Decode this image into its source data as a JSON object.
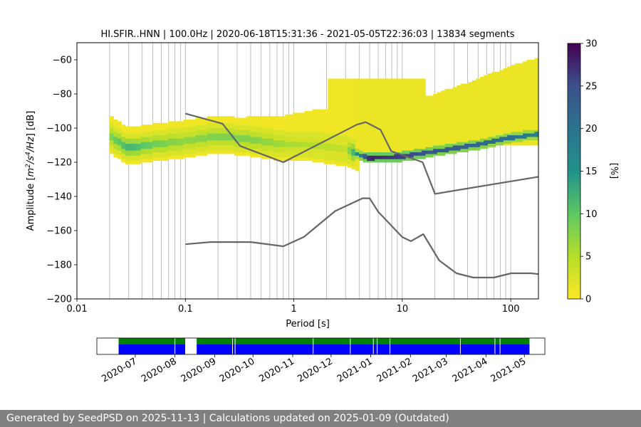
{
  "chart_data": [
    {
      "type": "heatmap",
      "title": "HI.SFIR..HNN | 100.0Hz | 2020-06-18T15:31:36 - 2021-05-05T22:36:03 | 13834 segments",
      "xlabel": "Period [s]",
      "ylabel_pre": "Amplitude [",
      "ylabel_m": "m",
      "ylabel_sup1": "2",
      "ylabel_s": "/s",
      "ylabel_sup2": "4",
      "ylabel_post": "/Hz] [dB]",
      "x_scale": "log",
      "xlim": [
        0.01,
        180
      ],
      "ylim": [
        -200,
        -50
      ],
      "xticks": [
        0.01,
        0.1,
        1,
        10,
        100
      ],
      "xtick_labels": [
        "0.01",
        "0.1",
        "1",
        "10",
        "100"
      ],
      "yticks": [
        -60,
        -80,
        -100,
        -120,
        -140,
        -160,
        -180,
        -200
      ],
      "ytick_labels": [
        "−60",
        "−80",
        "−100",
        "−120",
        "−140",
        "−160",
        "−180",
        "−200"
      ],
      "grid": "x",
      "colorbar": {
        "label": "[%]",
        "range": [
          0,
          30
        ],
        "ticks": [
          0,
          5,
          10,
          15,
          20,
          25,
          30
        ],
        "tick_labels": [
          "0",
          "5",
          "10",
          "15",
          "20",
          "25",
          "30"
        ],
        "colormap": "viridis_r",
        "colors": [
          "#fde725",
          "#5ec962",
          "#21918c",
          "#3b528b",
          "#440154"
        ]
      },
      "psd_mode": {
        "periods": [
          0.02,
          0.03,
          0.05,
          0.1,
          0.2,
          0.4,
          0.8,
          1.5,
          3,
          5,
          10,
          20,
          50,
          100,
          180
        ],
        "db": [
          -105,
          -112,
          -110,
          -108,
          -105,
          -107,
          -110,
          -110,
          -113,
          -118,
          -117,
          -114,
          -110,
          -106,
          -104
        ],
        "percent": [
          8,
          12,
          9,
          7,
          8,
          8,
          6,
          5,
          4,
          28,
          26,
          24,
          22,
          20,
          18
        ]
      },
      "series": [
        {
          "name": "NHNM",
          "color": "#666666",
          "x": [
            0.1,
            0.22,
            0.32,
            0.8,
            3.8,
            4.6,
            6.3,
            7.9,
            15.4,
            20,
            180
          ],
          "y": [
            -91.5,
            -97.4,
            -110.5,
            -120,
            -98,
            -96.5,
            -101,
            -113.5,
            -120,
            -138.5,
            -128.5
          ]
        },
        {
          "name": "NLNM",
          "color": "#666666",
          "x": [
            0.1,
            0.17,
            0.4,
            0.8,
            1.24,
            2.4,
            4.3,
            5,
            6,
            10,
            12,
            15.6,
            21.9,
            31.6,
            45,
            70,
            101,
            154,
            180
          ],
          "y": [
            -168,
            -166.7,
            -166.7,
            -169.2,
            -163.7,
            -148.6,
            -141.1,
            -141.1,
            -149,
            -163.8,
            -166.2,
            -162.1,
            -177.5,
            -185,
            -187.5,
            -187.5,
            -185,
            -185,
            -185.5
          ]
        }
      ]
    },
    {
      "type": "timeline",
      "xtick_labels": [
        "2020-07",
        "2020-08",
        "2020-09",
        "2020-10",
        "2020-11",
        "2020-12",
        "2021-01",
        "2021-02",
        "2021-03",
        "2021-04",
        "2021-05"
      ],
      "start": "2020-06-18",
      "end": "2021-05-05",
      "top_color": "#008000",
      "bottom_color": "#0000ff",
      "coverage": [
        [
          "2020-06-18",
          "2020-08-09"
        ],
        [
          "2020-08-18",
          "2021-05-05"
        ]
      ]
    }
  ],
  "footer": {
    "text": "Generated by SeedPSD on 2025-11-13 | Calculations updated on 2025-01-09 (Outdated)"
  }
}
